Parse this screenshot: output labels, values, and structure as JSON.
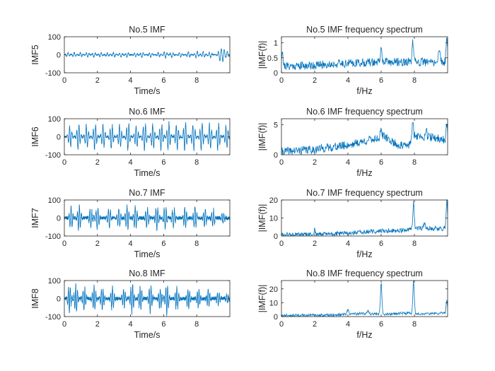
{
  "figure": {
    "background": "#ffffff",
    "axis_color": "#262626",
    "line_color": "#0072BD"
  },
  "chart_data": [
    {
      "type": "line",
      "title": "No.5 IMF",
      "xlabel": "Time/s",
      "ylabel": "IMF5",
      "xlim": [
        0,
        10
      ],
      "ylim": [
        -100,
        100
      ],
      "xticks": [
        0,
        2,
        4,
        6,
        8
      ],
      "yticks": [
        100,
        0,
        -100
      ],
      "signal": "oscillation",
      "seed": 11,
      "bursts": [
        [
          0.2,
          12
        ],
        [
          0.6,
          14
        ],
        [
          1.0,
          13
        ],
        [
          1.4,
          15
        ],
        [
          1.8,
          14
        ],
        [
          2.2,
          15
        ],
        [
          2.6,
          13
        ],
        [
          3.0,
          15
        ],
        [
          3.4,
          14
        ],
        [
          3.8,
          16
        ],
        [
          4.3,
          14
        ],
        [
          4.7,
          17
        ],
        [
          5.2,
          15
        ],
        [
          5.7,
          14
        ],
        [
          6.1,
          22
        ],
        [
          6.5,
          17
        ],
        [
          7.0,
          15
        ],
        [
          7.5,
          18
        ],
        [
          8.0,
          22
        ],
        [
          8.4,
          18
        ],
        [
          8.8,
          20
        ],
        [
          9.4,
          35
        ],
        [
          9.6,
          38
        ],
        [
          9.85,
          18
        ]
      ],
      "carrier_hz": 5.5,
      "noise": 2
    },
    {
      "type": "line",
      "title": "No.5 IMF frequency spectrum",
      "xlabel": "f/Hz",
      "ylabel": "|IMF(f)|",
      "xlim": [
        0,
        10
      ],
      "ylim": [
        0,
        1.2
      ],
      "xticks": [
        0,
        2,
        4,
        6,
        8
      ],
      "yticks": [
        1,
        0.5,
        0
      ],
      "signal": "spectrum",
      "seed": 21,
      "baseline": [
        [
          0,
          0.22
        ],
        [
          2,
          0.25
        ],
        [
          4,
          0.32
        ],
        [
          6,
          0.36
        ],
        [
          8,
          0.36
        ],
        [
          10,
          0.35
        ]
      ],
      "noise": 0.14,
      "peaks": [
        [
          0.05,
          0.55
        ],
        [
          6.0,
          0.45
        ],
        [
          7.9,
          0.62
        ],
        [
          9.5,
          0.5
        ],
        [
          9.95,
          0.85
        ]
      ]
    },
    {
      "type": "line",
      "title": "No.6 IMF",
      "xlabel": "Time/s",
      "ylabel": "IMF6",
      "xlim": [
        0,
        10
      ],
      "ylim": [
        -100,
        100
      ],
      "xticks": [
        0,
        2,
        4,
        6,
        8
      ],
      "yticks": [
        100,
        0,
        -100
      ],
      "signal": "oscillation",
      "seed": 31,
      "bursts": [
        [
          0.35,
          65
        ],
        [
          0.85,
          75
        ],
        [
          1.35,
          70
        ],
        [
          1.85,
          80
        ],
        [
          2.35,
          72
        ],
        [
          2.85,
          78
        ],
        [
          3.35,
          70
        ],
        [
          3.85,
          85
        ],
        [
          4.35,
          72
        ],
        [
          4.85,
          88
        ],
        [
          5.35,
          75
        ],
        [
          5.85,
          80
        ],
        [
          6.3,
          90
        ],
        [
          6.8,
          78
        ],
        [
          7.3,
          92
        ],
        [
          7.8,
          82
        ],
        [
          8.3,
          88
        ],
        [
          8.8,
          80
        ],
        [
          9.3,
          85
        ],
        [
          9.8,
          70
        ]
      ],
      "carrier_hz": 7,
      "noise": 6
    },
    {
      "type": "line",
      "title": "No.6 IMF frequency spectrum",
      "xlabel": "f/Hz",
      "ylabel": "|IMF(f)|",
      "xlim": [
        0,
        10
      ],
      "ylim": [
        0,
        6
      ],
      "xticks": [
        0,
        2,
        4,
        6,
        8
      ],
      "yticks": [
        5,
        0
      ],
      "signal": "spectrum",
      "seed": 41,
      "baseline": [
        [
          0,
          0.5
        ],
        [
          2,
          0.9
        ],
        [
          4,
          1.6
        ],
        [
          5.5,
          2.6
        ],
        [
          6.2,
          3.0
        ],
        [
          7.0,
          1.6
        ],
        [
          7.6,
          1.4
        ],
        [
          8.0,
          3.2
        ],
        [
          9.0,
          2.9
        ],
        [
          10,
          2.4
        ]
      ],
      "noise": 0.7,
      "peaks": [
        [
          6.0,
          1.6
        ],
        [
          7.9,
          2.4
        ],
        [
          8.7,
          1.4
        ],
        [
          9.95,
          2.6
        ]
      ]
    },
    {
      "type": "line",
      "title": "No.7 IMF",
      "xlabel": "Time/s",
      "ylabel": "IMF7",
      "xlim": [
        0,
        10
      ],
      "ylim": [
        -100,
        100
      ],
      "xticks": [
        0,
        2,
        4,
        6,
        8
      ],
      "yticks": [
        100,
        0,
        -100
      ],
      "signal": "oscillation",
      "seed": 51,
      "bursts": [
        [
          0.4,
          65
        ],
        [
          0.9,
          75
        ],
        [
          1.6,
          60
        ],
        [
          2.0,
          70
        ],
        [
          2.7,
          65
        ],
        [
          3.3,
          60
        ],
        [
          3.8,
          75
        ],
        [
          4.3,
          70
        ],
        [
          5.0,
          60
        ],
        [
          5.6,
          70
        ],
        [
          6.1,
          72
        ],
        [
          6.6,
          65
        ],
        [
          7.3,
          62
        ],
        [
          7.9,
          70
        ],
        [
          8.5,
          55
        ],
        [
          9.0,
          50
        ],
        [
          9.6,
          30
        ]
      ],
      "carrier_hz": 8,
      "noise": 10
    },
    {
      "type": "line",
      "title": "No.7 IMF frequency spectrum",
      "xlabel": "f/Hz",
      "ylabel": "|IMF(f)|",
      "xlim": [
        0,
        10
      ],
      "ylim": [
        0,
        20
      ],
      "xticks": [
        0,
        2,
        4,
        6,
        8
      ],
      "yticks": [
        20,
        10,
        0
      ],
      "signal": "spectrum",
      "seed": 61,
      "baseline": [
        [
          0,
          0.6
        ],
        [
          2,
          0.8
        ],
        [
          4,
          1.5
        ],
        [
          6,
          2.8
        ],
        [
          7.5,
          3.2
        ],
        [
          8.5,
          4.5
        ],
        [
          10,
          4.0
        ]
      ],
      "noise": 1.3,
      "peaks": [
        [
          2.0,
          2.8
        ],
        [
          7.95,
          14.5
        ],
        [
          8.6,
          2.5
        ],
        [
          9.95,
          15.0
        ]
      ]
    },
    {
      "type": "line",
      "title": "No.8 IMF",
      "xlabel": "Time/s",
      "ylabel": "IMF8",
      "xlim": [
        0,
        10
      ],
      "ylim": [
        -100,
        100
      ],
      "xticks": [
        0,
        2,
        4,
        6,
        8
      ],
      "yticks": [
        100,
        0,
        -100
      ],
      "signal": "oscillation",
      "seed": 71,
      "bursts": [
        [
          0.3,
          80
        ],
        [
          0.7,
          85
        ],
        [
          1.2,
          70
        ],
        [
          1.8,
          78
        ],
        [
          2.3,
          65
        ],
        [
          2.9,
          72
        ],
        [
          3.6,
          55
        ],
        [
          4.1,
          90
        ],
        [
          4.6,
          70
        ],
        [
          5.2,
          80
        ],
        [
          5.8,
          65
        ],
        [
          6.2,
          92
        ],
        [
          6.8,
          70
        ],
        [
          7.5,
          60
        ],
        [
          8.1,
          55
        ],
        [
          8.7,
          50
        ],
        [
          9.3,
          40
        ],
        [
          9.85,
          25
        ]
      ],
      "carrier_hz": 9,
      "noise": 10
    },
    {
      "type": "line",
      "title": "No.8 IMF frequency spectrum",
      "xlabel": "f/Hz",
      "ylabel": "|IMF(f)|",
      "xlim": [
        0,
        10
      ],
      "ylim": [
        0,
        26
      ],
      "xticks": [
        0,
        2,
        4,
        6,
        8
      ],
      "yticks": [
        20,
        10,
        0
      ],
      "signal": "spectrum",
      "seed": 81,
      "baseline": [
        [
          0,
          0.8
        ],
        [
          3,
          1.0
        ],
        [
          4,
          1.8
        ],
        [
          5,
          2.2
        ],
        [
          6.5,
          1.8
        ],
        [
          7.5,
          2.5
        ],
        [
          8.5,
          2.0
        ],
        [
          10,
          2.5
        ]
      ],
      "noise": 1.0,
      "peaks": [
        [
          4.0,
          3.0
        ],
        [
          5.2,
          2.5
        ],
        [
          6.0,
          22.5
        ],
        [
          7.95,
          23.0
        ],
        [
          9.95,
          9.0
        ]
      ]
    }
  ]
}
